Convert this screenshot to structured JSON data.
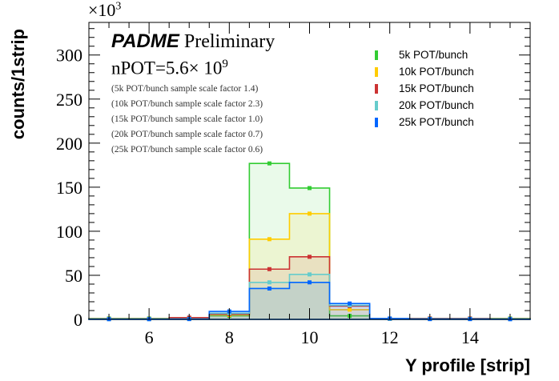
{
  "chart_data": {
    "type": "histogram-step",
    "xlabel": "Y profile [strip]",
    "ylabel": "counts/1strip",
    "y_multiplier": "×10",
    "y_multiplier_exp": "3",
    "xlim": [
      4.5,
      15.5
    ],
    "ylim": [
      0,
      337
    ],
    "xticks": [
      6,
      8,
      10,
      12,
      14
    ],
    "yticks": [
      0,
      50,
      100,
      150,
      200,
      250,
      300
    ],
    "bin_centers": [
      5,
      6,
      7,
      8,
      9,
      10,
      11,
      12,
      13,
      14,
      15
    ],
    "series": [
      {
        "name": "5k POT/bunch",
        "color": "#33cc33",
        "values": [
          1,
          1,
          1,
          4,
          177,
          149,
          4,
          0.5,
          1,
          1,
          1
        ]
      },
      {
        "name": "10k POT/bunch",
        "color": "#ffcc00",
        "values": [
          0.5,
          0.5,
          1,
          5,
          91,
          120,
          11,
          0.5,
          0.5,
          0.5,
          0.5
        ]
      },
      {
        "name": "15k POT/bunch",
        "color": "#cc3333",
        "values": [
          0.5,
          0.5,
          2,
          6,
          57,
          71,
          15,
          0.5,
          1,
          1,
          0.5
        ]
      },
      {
        "name": "20k POT/bunch",
        "color": "#66cccc",
        "values": [
          0.3,
          0.3,
          0.5,
          7,
          42,
          51,
          16,
          0.5,
          0.5,
          0.5,
          0.3
        ]
      },
      {
        "name": "25k POT/bunch",
        "color": "#0066ff",
        "values": [
          0.2,
          0.2,
          0.3,
          9,
          35,
          42,
          18,
          1,
          0.3,
          0.3,
          0.2
        ]
      }
    ],
    "legend_position": "top-right",
    "annotations": {
      "experiment": "PADME",
      "status": "Preliminary",
      "npot_base": "nPOT=5.6× 10",
      "npot_exp": "9",
      "scale_notes": [
        "(5k POT/bunch sample scale factor 1.4)",
        "(10k POT/bunch sample scale factor 2.3)",
        "(15k POT/bunch sample scale factor 1.0)",
        "(20k POT/bunch sample scale factor 0.7)",
        "(25k POT/bunch sample scale factor 0.6)"
      ]
    }
  }
}
